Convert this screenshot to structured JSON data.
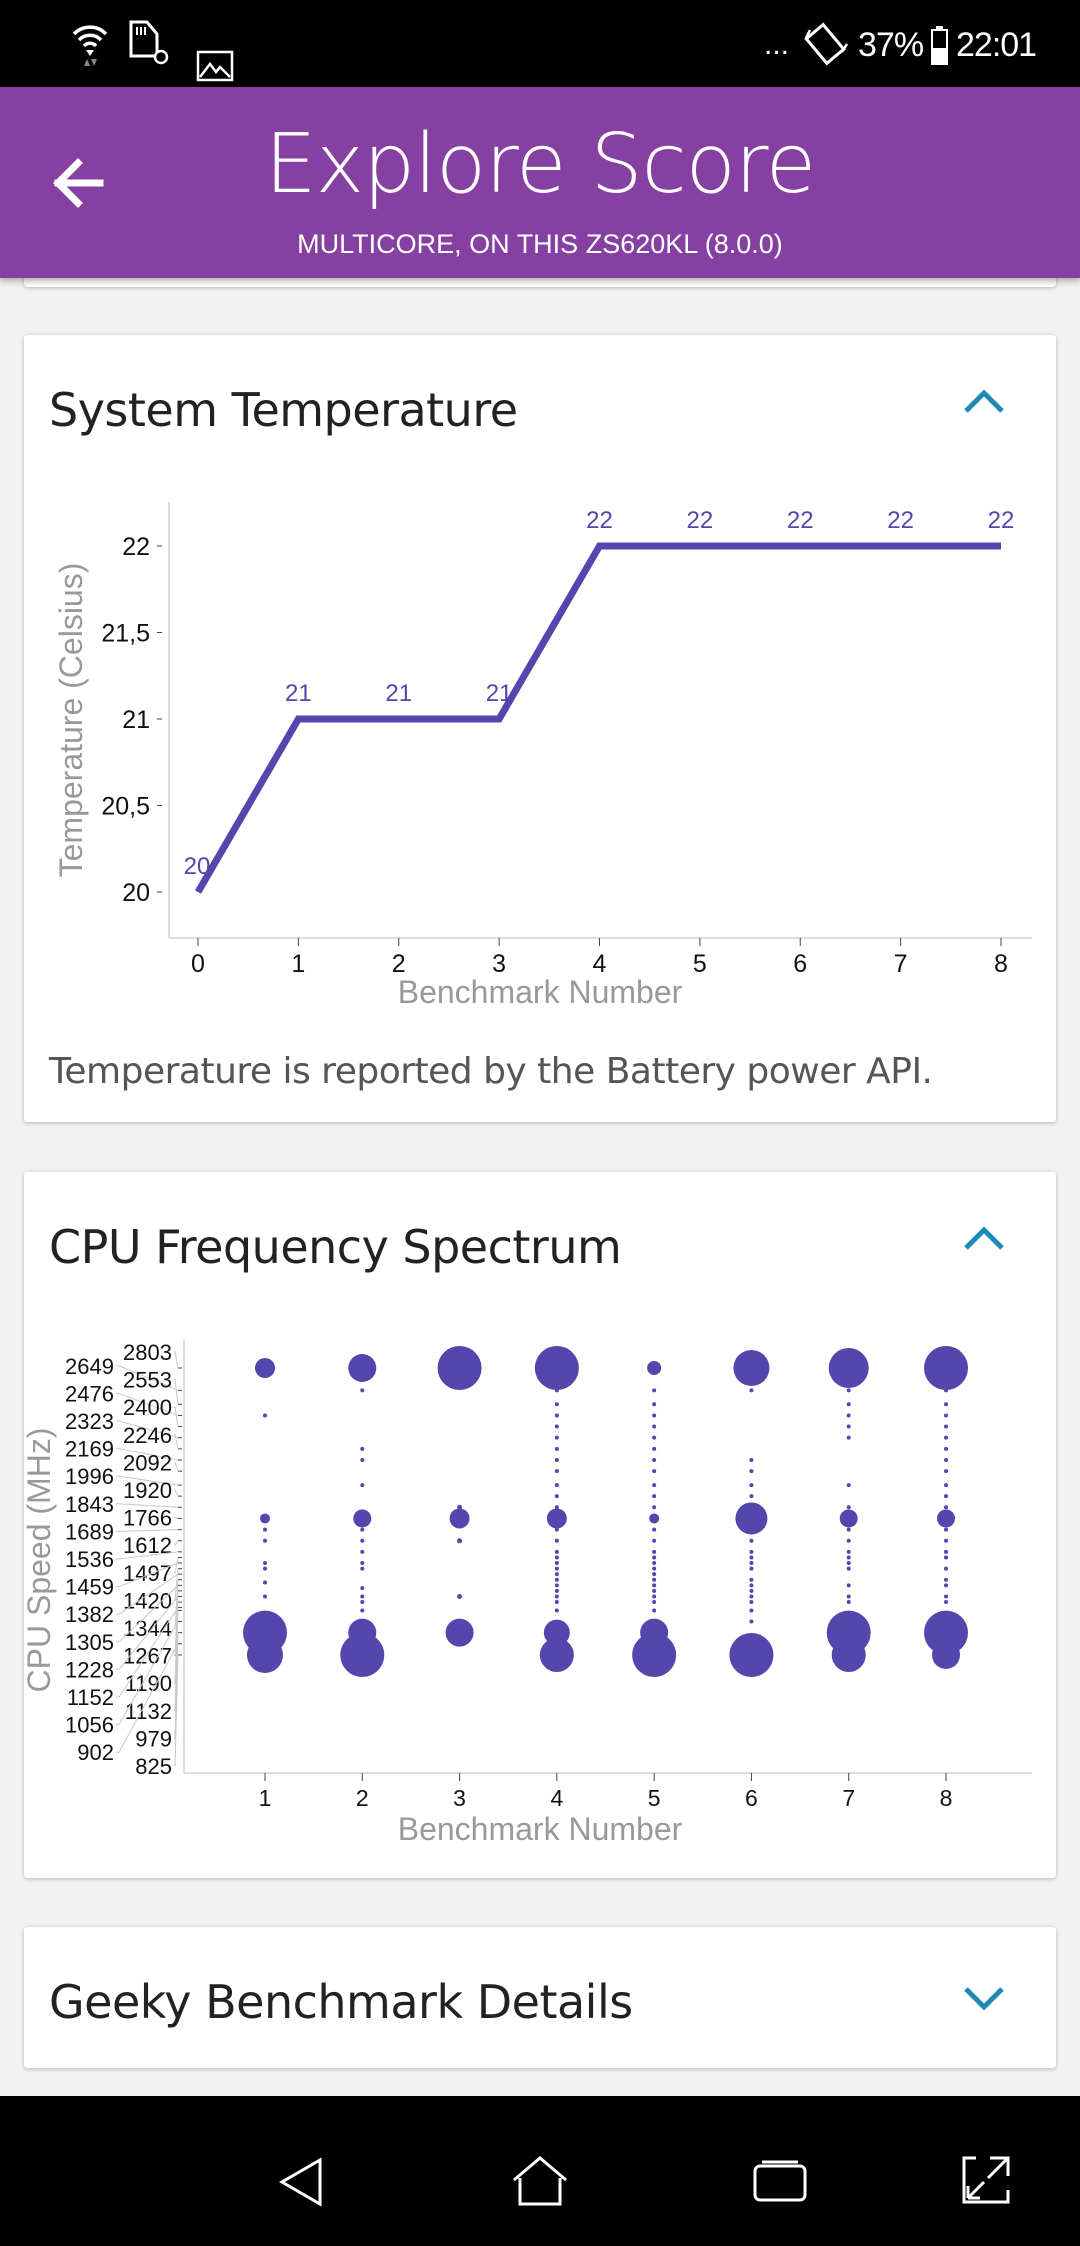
{
  "status_bar": {
    "overflow": "...",
    "battery": "37%",
    "time": "22:01",
    "icons": [
      "wifi-icon",
      "sd-card-icon",
      "image-icon",
      "rotate-icon",
      "battery-icon"
    ]
  },
  "header": {
    "title": "Explore Score",
    "subtitle": "MULTICORE, ON THIS ZS620KL (8.0.0)",
    "back_icon": "arrow-left-icon"
  },
  "cards": [
    {
      "title": "System Temperature",
      "expanded": true,
      "note": "Temperature is reported by the Battery power API."
    },
    {
      "title": "CPU Frequency Spectrum",
      "expanded": true
    },
    {
      "title": "Geeky Benchmark Details",
      "expanded": false
    }
  ],
  "colors": {
    "header": "#8640a2",
    "series": "#5546ad",
    "chevron": "#1a8cb4"
  },
  "chart_data": [
    {
      "type": "line",
      "title": "System Temperature",
      "xlabel": "Benchmark Number",
      "ylabel": "Temperature (Celsius)",
      "x": [
        0,
        1,
        2,
        3,
        4,
        5,
        6,
        7,
        8
      ],
      "y": [
        20,
        21,
        21,
        21,
        22,
        22,
        22,
        22,
        22
      ],
      "data_labels": [
        "20",
        "21",
        "21",
        "21",
        "22",
        "22",
        "22",
        "22",
        "22"
      ],
      "xticks": [
        "0",
        "1",
        "2",
        "3",
        "4",
        "5",
        "6",
        "7",
        "8"
      ],
      "yticks": [
        {
          "v": 20,
          "label": "20"
        },
        {
          "v": 20.5,
          "label": "20,5"
        },
        {
          "v": 21,
          "label": "21"
        },
        {
          "v": 21.5,
          "label": "21,5"
        },
        {
          "v": 22,
          "label": "22"
        }
      ],
      "xlim": [
        0,
        8
      ],
      "ylim": [
        20,
        22
      ]
    },
    {
      "type": "scatter",
      "title": "CPU Frequency Spectrum",
      "xlabel": "Benchmark Number",
      "ylabel": "CPU Speed (MHz)",
      "xticks": [
        "1",
        "2",
        "3",
        "4",
        "5",
        "6",
        "7",
        "8"
      ],
      "yticks": [
        "2803",
        "2649",
        "2553",
        "2476",
        "2400",
        "2323",
        "2246",
        "2169",
        "2092",
        "1996",
        "1920",
        "1843",
        "1766",
        "1689",
        "1612",
        "1536",
        "1497",
        "1459",
        "1420",
        "1382",
        "1344",
        "1305",
        "1267",
        "1228",
        "1190",
        "1152",
        "1132",
        "1056",
        "979",
        "902",
        "825"
      ],
      "ylim": [
        825,
        2803
      ],
      "series": [
        {
          "x": 1,
          "points": [
            [
              2803,
              10
            ],
            [
              2476,
              2
            ],
            [
              1766,
              5
            ],
            [
              1689,
              2
            ],
            [
              1612,
              2
            ],
            [
              1459,
              2
            ],
            [
              1420,
              2
            ],
            [
              1325,
              2
            ],
            [
              1228,
              2
            ],
            [
              979,
              22
            ],
            [
              825,
              18
            ]
          ]
        },
        {
          "x": 2,
          "points": [
            [
              2803,
              14
            ],
            [
              2649,
              2
            ],
            [
              2246,
              2
            ],
            [
              2169,
              2
            ],
            [
              1996,
              2
            ],
            [
              1766,
              9
            ],
            [
              1689,
              2
            ],
            [
              1612,
              2
            ],
            [
              1536,
              2
            ],
            [
              1459,
              2
            ],
            [
              1420,
              2
            ],
            [
              1286,
              2
            ],
            [
              1228,
              2
            ],
            [
              1190,
              2
            ],
            [
              1132,
              2
            ],
            [
              979,
              14
            ],
            [
              825,
              22
            ]
          ]
        },
        {
          "x": 3,
          "points": [
            [
              2803,
              22
            ],
            [
              1843,
              2.5
            ],
            [
              1766,
              10
            ],
            [
              1612,
              2.5
            ],
            [
              1228,
              2.5
            ],
            [
              979,
              14
            ]
          ]
        },
        {
          "x": 4,
          "points": [
            [
              2803,
              22
            ],
            [
              2649,
              2
            ],
            [
              2553,
              2
            ],
            [
              2476,
              2
            ],
            [
              2400,
              2
            ],
            [
              2323,
              2
            ],
            [
              2246,
              2
            ],
            [
              2169,
              2
            ],
            [
              2092,
              2
            ],
            [
              1996,
              2
            ],
            [
              1920,
              2
            ],
            [
              1843,
              2
            ],
            [
              1766,
              10
            ],
            [
              1689,
              2
            ],
            [
              1612,
              2
            ],
            [
              1536,
              2
            ],
            [
              1497,
              2
            ],
            [
              1459,
              2
            ],
            [
              1420,
              2
            ],
            [
              1382,
              2
            ],
            [
              1344,
              2
            ],
            [
              1305,
              2
            ],
            [
              1267,
              2
            ],
            [
              1228,
              2
            ],
            [
              1190,
              2
            ],
            [
              1132,
              2
            ],
            [
              979,
              13
            ],
            [
              825,
              17
            ]
          ]
        },
        {
          "x": 5,
          "points": [
            [
              2803,
              7
            ],
            [
              2649,
              2
            ],
            [
              2553,
              2
            ],
            [
              2476,
              2
            ],
            [
              2400,
              2
            ],
            [
              2323,
              2
            ],
            [
              2246,
              2
            ],
            [
              2169,
              2
            ],
            [
              2092,
              2
            ],
            [
              1996,
              2
            ],
            [
              1920,
              2
            ],
            [
              1843,
              2
            ],
            [
              1766,
              5
            ],
            [
              1689,
              2
            ],
            [
              1612,
              2
            ],
            [
              1536,
              2
            ],
            [
              1497,
              2
            ],
            [
              1459,
              2
            ],
            [
              1420,
              2
            ],
            [
              1382,
              2
            ],
            [
              1344,
              2
            ],
            [
              1305,
              2
            ],
            [
              1267,
              2
            ],
            [
              1228,
              2
            ],
            [
              1190,
              2
            ],
            [
              1132,
              2
            ],
            [
              979,
              14
            ],
            [
              825,
              22
            ]
          ]
        },
        {
          "x": 6,
          "points": [
            [
              2803,
              18
            ],
            [
              2649,
              2
            ],
            [
              2169,
              2
            ],
            [
              2092,
              2
            ],
            [
              1996,
              2
            ],
            [
              1920,
              2
            ],
            [
              1766,
              16
            ],
            [
              1612,
              2
            ],
            [
              1536,
              2
            ],
            [
              1497,
              2
            ],
            [
              1459,
              2
            ],
            [
              1420,
              2
            ],
            [
              1344,
              2
            ],
            [
              1305,
              2
            ],
            [
              1267,
              2
            ],
            [
              1228,
              2
            ],
            [
              1190,
              2
            ],
            [
              1132,
              2
            ],
            [
              1056,
              2
            ],
            [
              902,
              3
            ],
            [
              825,
              22
            ]
          ]
        },
        {
          "x": 7,
          "points": [
            [
              2803,
              20
            ],
            [
              2649,
              2
            ],
            [
              2553,
              2
            ],
            [
              2476,
              2
            ],
            [
              2400,
              2
            ],
            [
              2323,
              2
            ],
            [
              1996,
              2
            ],
            [
              1843,
              2
            ],
            [
              1766,
              9
            ],
            [
              1689,
              2
            ],
            [
              1612,
              2
            ],
            [
              1536,
              2
            ],
            [
              1497,
              2
            ],
            [
              1459,
              2
            ],
            [
              1420,
              2
            ],
            [
              1305,
              2
            ],
            [
              1228,
              2
            ],
            [
              1190,
              2
            ],
            [
              979,
              22
            ],
            [
              825,
              17
            ]
          ]
        },
        {
          "x": 8,
          "points": [
            [
              2803,
              22
            ],
            [
              2649,
              2
            ],
            [
              2553,
              2
            ],
            [
              2476,
              2
            ],
            [
              2400,
              2
            ],
            [
              2323,
              2
            ],
            [
              2246,
              2
            ],
            [
              2169,
              2
            ],
            [
              2092,
              2
            ],
            [
              1996,
              2
            ],
            [
              1920,
              2
            ],
            [
              1843,
              2
            ],
            [
              1766,
              9
            ],
            [
              1689,
              2
            ],
            [
              1612,
              2
            ],
            [
              1536,
              2
            ],
            [
              1497,
              2
            ],
            [
              1420,
              2
            ],
            [
              1344,
              2
            ],
            [
              1305,
              2
            ],
            [
              1228,
              2
            ],
            [
              1190,
              2
            ],
            [
              979,
              22
            ],
            [
              825,
              14
            ]
          ]
        }
      ]
    }
  ]
}
